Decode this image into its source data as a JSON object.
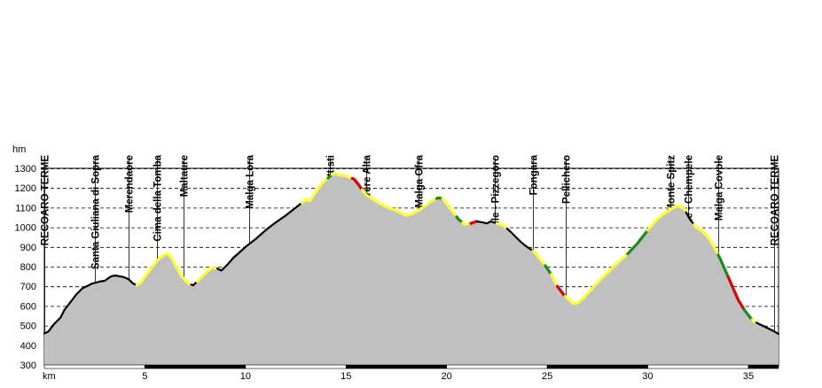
{
  "chart_data": {
    "type": "area",
    "title": "",
    "xlabel": "km",
    "ylabel": "hm",
    "xlim": [
      0,
      36.5
    ],
    "ylim": [
      300,
      1300
    ],
    "x_ticks": [
      5,
      10,
      15,
      20,
      25,
      30,
      35
    ],
    "y_ticks": [
      300,
      400,
      500,
      600,
      700,
      800,
      900,
      1000,
      1100,
      1200,
      1300
    ],
    "grid": true,
    "fill_color": "#c0c0c0",
    "segment_colors": {
      "black": "#000000",
      "yellow": "#ffff33",
      "red": "#dd0000",
      "green": "#1a8c1a"
    },
    "profile": [
      [
        0.0,
        460
      ],
      [
        0.2,
        470
      ],
      [
        0.5,
        510
      ],
      [
        0.8,
        540
      ],
      [
        1.0,
        580
      ],
      [
        1.3,
        620
      ],
      [
        1.6,
        660
      ],
      [
        1.9,
        690
      ],
      [
        2.2,
        705
      ],
      [
        2.4,
        715
      ],
      [
        2.6,
        720
      ],
      [
        2.8,
        725
      ],
      [
        3.0,
        728
      ],
      [
        3.3,
        750
      ],
      [
        3.5,
        755
      ],
      [
        3.8,
        750
      ],
      [
        4.0,
        745
      ],
      [
        4.2,
        735
      ],
      [
        4.4,
        715
      ],
      [
        4.6,
        705
      ],
      [
        4.8,
        720
      ],
      [
        5.0,
        750
      ],
      [
        5.3,
        790
      ],
      [
        5.6,
        830
      ],
      [
        5.9,
        855
      ],
      [
        6.1,
        868
      ],
      [
        6.3,
        850
      ],
      [
        6.5,
        810
      ],
      [
        6.8,
        755
      ],
      [
        7.0,
        730
      ],
      [
        7.2,
        712
      ],
      [
        7.4,
        705
      ],
      [
        7.6,
        725
      ],
      [
        7.9,
        755
      ],
      [
        8.1,
        778
      ],
      [
        8.4,
        795
      ],
      [
        8.6,
        790
      ],
      [
        8.8,
        780
      ],
      [
        9.1,
        810
      ],
      [
        9.4,
        845
      ],
      [
        9.7,
        872
      ],
      [
        10.0,
        900
      ],
      [
        10.5,
        940
      ],
      [
        11.0,
        985
      ],
      [
        11.5,
        1025
      ],
      [
        12.0,
        1060
      ],
      [
        12.5,
        1100
      ],
      [
        12.8,
        1125
      ],
      [
        13.0,
        1140
      ],
      [
        13.2,
        1135
      ],
      [
        13.4,
        1165
      ],
      [
        13.6,
        1195
      ],
      [
        13.9,
        1235
      ],
      [
        14.1,
        1250
      ],
      [
        14.3,
        1268
      ],
      [
        14.5,
        1272
      ],
      [
        14.7,
        1265
      ],
      [
        15.0,
        1262
      ],
      [
        15.2,
        1252
      ],
      [
        15.4,
        1245
      ],
      [
        15.6,
        1220
      ],
      [
        15.8,
        1190
      ],
      [
        16.0,
        1165
      ],
      [
        16.3,
        1145
      ],
      [
        16.6,
        1125
      ],
      [
        16.9,
        1110
      ],
      [
        17.2,
        1095
      ],
      [
        17.5,
        1085
      ],
      [
        17.8,
        1070
      ],
      [
        18.0,
        1060
      ],
      [
        18.2,
        1065
      ],
      [
        18.4,
        1075
      ],
      [
        18.6,
        1085
      ],
      [
        18.8,
        1100
      ],
      [
        19.0,
        1115
      ],
      [
        19.2,
        1130
      ],
      [
        19.4,
        1142
      ],
      [
        19.6,
        1150
      ],
      [
        19.8,
        1145
      ],
      [
        20.0,
        1120
      ],
      [
        20.3,
        1080
      ],
      [
        20.6,
        1040
      ],
      [
        20.9,
        1015
      ],
      [
        21.2,
        1020
      ],
      [
        21.5,
        1030
      ],
      [
        21.8,
        1025
      ],
      [
        22.0,
        1020
      ],
      [
        22.2,
        1030
      ],
      [
        22.5,
        1020
      ],
      [
        22.8,
        1010
      ],
      [
        23.1,
        985
      ],
      [
        23.4,
        955
      ],
      [
        23.7,
        925
      ],
      [
        24.0,
        900
      ],
      [
        24.3,
        880
      ],
      [
        24.6,
        845
      ],
      [
        24.9,
        805
      ],
      [
        25.2,
        760
      ],
      [
        25.5,
        700
      ],
      [
        25.8,
        660
      ],
      [
        26.1,
        630
      ],
      [
        26.3,
        612
      ],
      [
        26.5,
        615
      ],
      [
        26.8,
        640
      ],
      [
        27.1,
        675
      ],
      [
        27.5,
        720
      ],
      [
        28.0,
        770
      ],
      [
        28.5,
        820
      ],
      [
        29.0,
        865
      ],
      [
        29.5,
        920
      ],
      [
        30.0,
        985
      ],
      [
        30.4,
        1035
      ],
      [
        30.8,
        1070
      ],
      [
        31.2,
        1095
      ],
      [
        31.5,
        1110
      ],
      [
        31.8,
        1095
      ],
      [
        32.1,
        1040
      ],
      [
        32.4,
        1000
      ],
      [
        32.7,
        980
      ],
      [
        33.0,
        950
      ],
      [
        33.3,
        900
      ],
      [
        33.6,
        840
      ],
      [
        33.9,
        770
      ],
      [
        34.2,
        700
      ],
      [
        34.5,
        630
      ],
      [
        34.8,
        580
      ],
      [
        35.1,
        540
      ],
      [
        35.3,
        520
      ],
      [
        35.6,
        505
      ],
      [
        35.9,
        490
      ],
      [
        36.2,
        475
      ],
      [
        36.5,
        458
      ]
    ],
    "segments": [
      {
        "from": 0.0,
        "to": 4.6,
        "color": "black"
      },
      {
        "from": 4.6,
        "to": 7.3,
        "color": "yellow"
      },
      {
        "from": 7.3,
        "to": 7.6,
        "color": "black"
      },
      {
        "from": 7.6,
        "to": 8.6,
        "color": "yellow"
      },
      {
        "from": 8.6,
        "to": 12.8,
        "color": "black"
      },
      {
        "from": 12.8,
        "to": 14.1,
        "color": "yellow"
      },
      {
        "from": 14.1,
        "to": 14.3,
        "color": "green"
      },
      {
        "from": 14.3,
        "to": 15.3,
        "color": "yellow"
      },
      {
        "from": 15.3,
        "to": 15.8,
        "color": "red"
      },
      {
        "from": 15.8,
        "to": 19.5,
        "color": "yellow"
      },
      {
        "from": 19.5,
        "to": 19.8,
        "color": "green"
      },
      {
        "from": 19.8,
        "to": 20.5,
        "color": "yellow"
      },
      {
        "from": 20.5,
        "to": 20.8,
        "color": "green"
      },
      {
        "from": 20.8,
        "to": 21.2,
        "color": "yellow"
      },
      {
        "from": 21.2,
        "to": 21.5,
        "color": "red"
      },
      {
        "from": 21.5,
        "to": 22.5,
        "color": "black"
      },
      {
        "from": 22.5,
        "to": 23.0,
        "color": "yellow"
      },
      {
        "from": 23.0,
        "to": 24.3,
        "color": "black"
      },
      {
        "from": 24.3,
        "to": 24.9,
        "color": "yellow"
      },
      {
        "from": 24.9,
        "to": 25.2,
        "color": "green"
      },
      {
        "from": 25.2,
        "to": 25.5,
        "color": "yellow"
      },
      {
        "from": 25.5,
        "to": 25.9,
        "color": "red"
      },
      {
        "from": 25.9,
        "to": 29.0,
        "color": "yellow"
      },
      {
        "from": 29.0,
        "to": 30.0,
        "color": "green"
      },
      {
        "from": 30.0,
        "to": 31.9,
        "color": "yellow"
      },
      {
        "from": 31.9,
        "to": 32.3,
        "color": "black"
      },
      {
        "from": 32.3,
        "to": 33.5,
        "color": "yellow"
      },
      {
        "from": 33.5,
        "to": 34.0,
        "color": "green"
      },
      {
        "from": 34.0,
        "to": 34.8,
        "color": "red"
      },
      {
        "from": 34.8,
        "to": 35.2,
        "color": "green"
      },
      {
        "from": 35.2,
        "to": 35.4,
        "color": "yellow"
      },
      {
        "from": 35.4,
        "to": 36.5,
        "color": "black"
      }
    ],
    "waypoints": [
      {
        "name": "RECOARO TERME",
        "km": 0.0
      },
      {
        "name": "Santa Giuliana di Sopra",
        "km": 2.5
      },
      {
        "name": "Merendaore",
        "km": 4.2
      },
      {
        "name": "Cima della Tomba",
        "km": 5.6
      },
      {
        "name": "Maltaure",
        "km": 6.9
      },
      {
        "name": "Malga Lora",
        "km": 10.2
      },
      {
        "name": "Rif. Battisti",
        "km": 14.2
      },
      {
        "name": "Malga Rovere Alta",
        "km": 16.0
      },
      {
        "name": "Malga Ofra",
        "km": 18.6
      },
      {
        "name": "Recoaro Mille - Pizzegoro",
        "km": 22.4
      },
      {
        "name": "Fongara",
        "km": 24.3
      },
      {
        "name": "Pellichero",
        "km": 25.9
      },
      {
        "name": "Monte Spitz",
        "km": 31.1
      },
      {
        "name": "Recoaro Mille - Chempele",
        "km": 32.0
      },
      {
        "name": "Malga Covole",
        "km": 33.5
      },
      {
        "name": "RECOARO TERME",
        "km": 36.3
      }
    ]
  }
}
